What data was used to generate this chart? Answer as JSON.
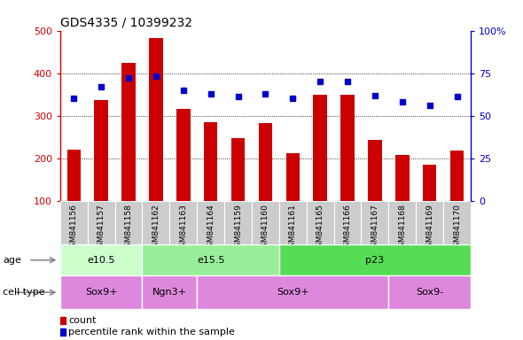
{
  "title": "GDS4335 / 10399232",
  "samples": [
    "GSM841156",
    "GSM841157",
    "GSM841158",
    "GSM841162",
    "GSM841163",
    "GSM841164",
    "GSM841159",
    "GSM841160",
    "GSM841161",
    "GSM841165",
    "GSM841166",
    "GSM841167",
    "GSM841168",
    "GSM841169",
    "GSM841170"
  ],
  "counts": [
    220,
    337,
    425,
    482,
    315,
    285,
    248,
    283,
    212,
    350,
    350,
    242,
    207,
    185,
    218
  ],
  "percentiles": [
    60,
    67,
    72,
    73,
    65,
    63,
    61,
    63,
    60,
    70,
    70,
    62,
    58,
    56,
    61
  ],
  "ylim_left": [
    100,
    500
  ],
  "ylim_right": [
    0,
    100
  ],
  "yticks_left": [
    100,
    200,
    300,
    400,
    500
  ],
  "yticks_right": [
    0,
    25,
    50,
    75,
    100
  ],
  "ytick_labels_right": [
    "0",
    "25",
    "50",
    "75",
    "100%"
  ],
  "bar_color": "#cc0000",
  "dot_color": "#0000cc",
  "age_groups": [
    {
      "label": "e10.5",
      "start": 0,
      "end": 3,
      "color": "#ccffcc"
    },
    {
      "label": "e15.5",
      "start": 3,
      "end": 8,
      "color": "#99ee99"
    },
    {
      "label": "p23",
      "start": 8,
      "end": 15,
      "color": "#55dd55"
    }
  ],
  "cell_groups": [
    {
      "label": "Sox9+",
      "start": 0,
      "end": 3,
      "color": "#dd88dd"
    },
    {
      "label": "Ngn3+",
      "start": 3,
      "end": 5,
      "color": "#dd88dd"
    },
    {
      "label": "Sox9+",
      "start": 5,
      "end": 12,
      "color": "#dd88dd"
    },
    {
      "label": "Sox9-",
      "start": 12,
      "end": 15,
      "color": "#dd88dd"
    }
  ],
  "legend_count_color": "#cc0000",
  "legend_dot_color": "#0000cc",
  "tick_area_color": "#cccccc",
  "left_axis_color": "#cc0000",
  "right_axis_color": "#0000cc",
  "title_fontsize": 10,
  "bar_width": 0.5,
  "label_fontsize": 6.5,
  "row_fontsize": 8
}
